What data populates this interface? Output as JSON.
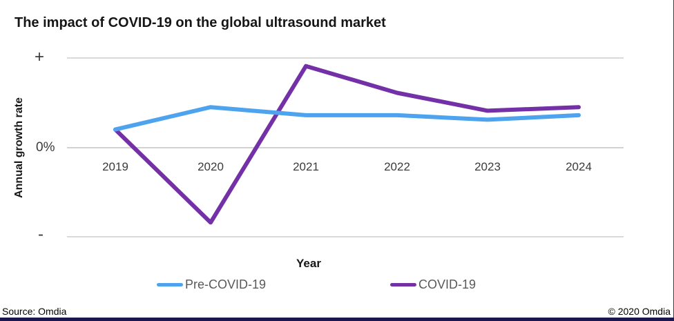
{
  "header": {
    "title": "The impact of COVID-19 on the global ultrasound market"
  },
  "chart_data": {
    "type": "line",
    "title": "The impact of COVID-19 on the global ultrasound market",
    "xlabel": "Year",
    "ylabel": "Annual growth rate",
    "x": [
      "2019",
      "2020",
      "2021",
      "2022",
      "2023",
      "2024"
    ],
    "y_axis_tick_labels": [
      "+",
      "0%",
      "-"
    ],
    "y_axis_note": "qualitative axis, values in relative units where +1 = top '+' gridline, 0 = '0%', -1 = bottom '-' gridline",
    "ylim": [
      -1,
      1
    ],
    "grid": "three horizontal gridlines (+, 0%, -), no vertical grid",
    "legend_position": "bottom center",
    "series": [
      {
        "name": "Pre-COVID-19",
        "color": "#4da3ee",
        "values": [
          0.2,
          0.45,
          0.36,
          0.36,
          0.31,
          0.36
        ]
      },
      {
        "name": "COVID-19",
        "color": "#7431a7",
        "values": [
          0.2,
          -0.84,
          0.91,
          0.61,
          0.41,
          0.45
        ]
      }
    ]
  },
  "axes": {
    "plus": "+",
    "zero": "0%",
    "minus": "-",
    "ylabel": "Annual growth rate",
    "xlabel": "Year",
    "years": [
      "2019",
      "2020",
      "2021",
      "2022",
      "2023",
      "2024"
    ]
  },
  "legend": {
    "items": [
      {
        "label": "Pre-COVID-19",
        "color": "#4da3ee"
      },
      {
        "label": "COVID-19",
        "color": "#7431a7"
      }
    ]
  },
  "footer": {
    "source": "Source: Omdia",
    "copyright": "© 2020 Omdia"
  },
  "colors": {
    "pre_covid_line": "#4da3ee",
    "covid_line": "#7431a7",
    "gridline": "#d9d9d9",
    "legend_text": "#595959",
    "brand_bar": "#1b1650",
    "title_text": "#161616"
  }
}
